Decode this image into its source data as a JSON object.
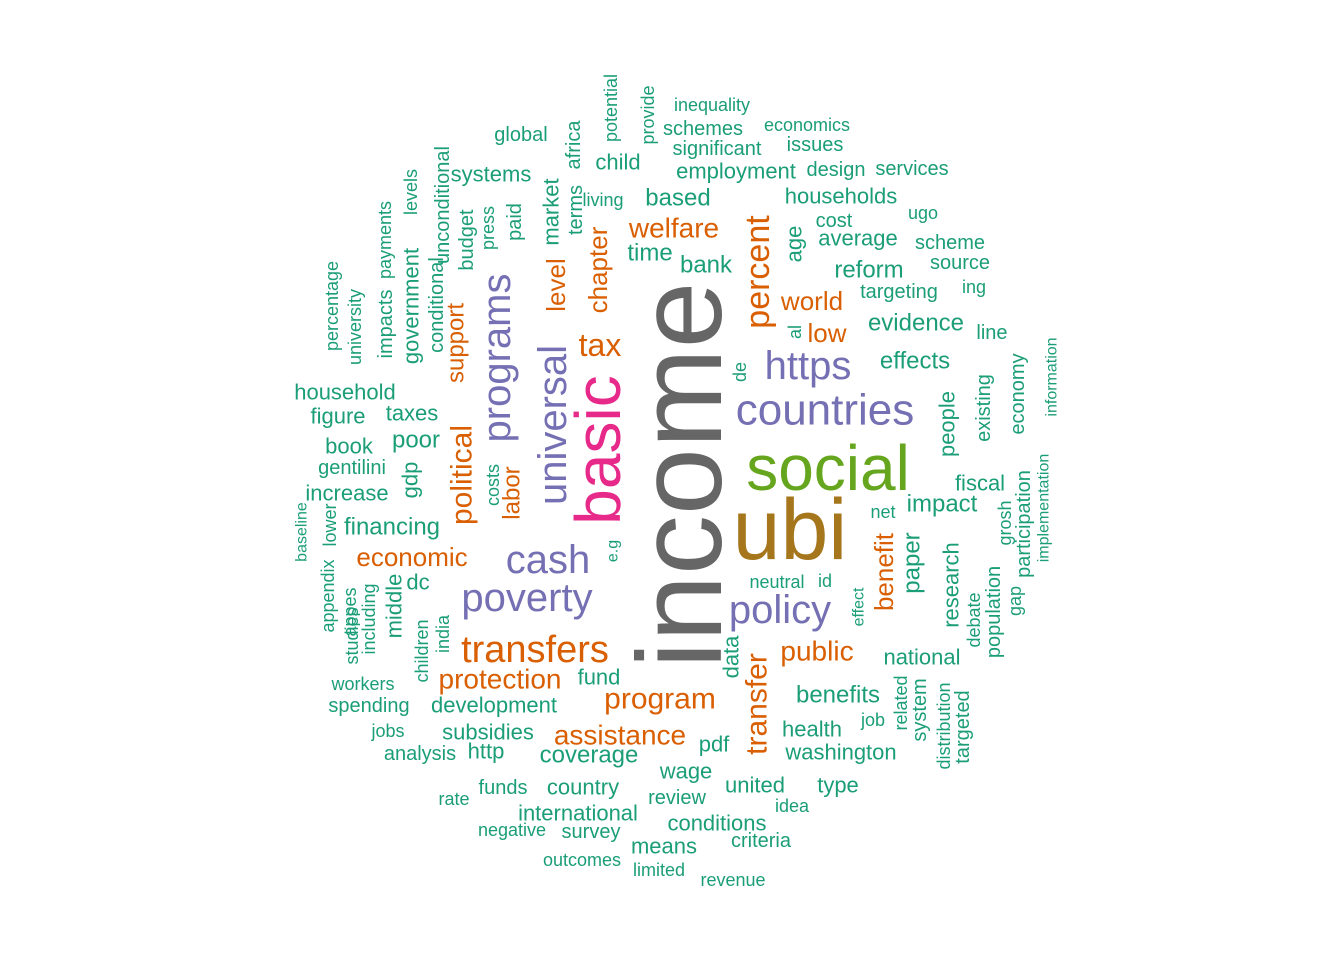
{
  "colors": {
    "gray": "#666666",
    "gold": "#a6761d",
    "green": "#66a61e",
    "pink": "#e7298a",
    "purple": "#7570b3",
    "orange": "#d95f02",
    "teal": "#1b9e77"
  },
  "words": [
    {
      "text": "income",
      "color": "gray"
    },
    {
      "text": "ubi",
      "color": "gold"
    },
    {
      "text": "social",
      "color": "green"
    },
    {
      "text": "basic",
      "color": "pink"
    },
    {
      "text": "universal",
      "color": "purple"
    },
    {
      "text": "programs",
      "color": "purple"
    },
    {
      "text": "countries",
      "color": "purple"
    },
    {
      "text": "cash",
      "color": "purple"
    },
    {
      "text": "poverty",
      "color": "purple"
    },
    {
      "text": "policy",
      "color": "purple"
    },
    {
      "text": "https",
      "color": "purple"
    },
    {
      "text": "transfers",
      "color": "orange"
    },
    {
      "text": "percent",
      "color": "orange"
    },
    {
      "text": "transfer",
      "color": "orange"
    },
    {
      "text": "program",
      "color": "orange"
    },
    {
      "text": "protection",
      "color": "orange"
    },
    {
      "text": "assistance",
      "color": "orange"
    },
    {
      "text": "tax",
      "color": "orange"
    },
    {
      "text": "political",
      "color": "orange"
    },
    {
      "text": "welfare",
      "color": "orange"
    },
    {
      "text": "economic",
      "color": "orange"
    },
    {
      "text": "public",
      "color": "orange"
    },
    {
      "text": "benefit",
      "color": "orange"
    },
    {
      "text": "chapter",
      "color": "orange"
    },
    {
      "text": "level",
      "color": "orange"
    },
    {
      "text": "labor",
      "color": "orange"
    },
    {
      "text": "support",
      "color": "orange"
    },
    {
      "text": "world",
      "color": "orange"
    },
    {
      "text": "low",
      "color": "orange"
    },
    {
      "text": "coverage",
      "color": "teal"
    },
    {
      "text": "impact",
      "color": "teal"
    },
    {
      "text": "evidence",
      "color": "teal"
    },
    {
      "text": "reform",
      "color": "teal"
    },
    {
      "text": "effects",
      "color": "teal"
    },
    {
      "text": "benefits",
      "color": "teal"
    },
    {
      "text": "paper",
      "color": "teal"
    },
    {
      "text": "development",
      "color": "teal"
    },
    {
      "text": "financing",
      "color": "teal"
    },
    {
      "text": "based",
      "color": "teal"
    },
    {
      "text": "bank",
      "color": "teal"
    },
    {
      "text": "time",
      "color": "teal"
    },
    {
      "text": "market",
      "color": "teal"
    },
    {
      "text": "households",
      "color": "teal"
    },
    {
      "text": "employment",
      "color": "teal"
    },
    {
      "text": "age",
      "color": "teal"
    },
    {
      "text": "average",
      "color": "teal"
    },
    {
      "text": "cost",
      "color": "teal"
    },
    {
      "text": "targeting",
      "color": "teal"
    },
    {
      "text": "scheme",
      "color": "teal"
    },
    {
      "text": "source",
      "color": "teal"
    },
    {
      "text": "ing",
      "color": "teal"
    },
    {
      "text": "ugo",
      "color": "teal"
    },
    {
      "text": "design",
      "color": "teal"
    },
    {
      "text": "services",
      "color": "teal"
    },
    {
      "text": "issues",
      "color": "teal"
    },
    {
      "text": "significant",
      "color": "teal"
    },
    {
      "text": "schemes",
      "color": "teal"
    },
    {
      "text": "economics",
      "color": "teal"
    },
    {
      "text": "inequality",
      "color": "teal"
    },
    {
      "text": "provide",
      "color": "teal"
    },
    {
      "text": "potential",
      "color": "teal"
    },
    {
      "text": "africa",
      "color": "teal"
    },
    {
      "text": "child",
      "color": "teal"
    },
    {
      "text": "living",
      "color": "teal"
    },
    {
      "text": "terms",
      "color": "teal"
    },
    {
      "text": "global",
      "color": "teal"
    },
    {
      "text": "systems",
      "color": "teal"
    },
    {
      "text": "unconditional",
      "color": "teal"
    },
    {
      "text": "levels",
      "color": "teal"
    },
    {
      "text": "payments",
      "color": "teal"
    },
    {
      "text": "budget",
      "color": "teal"
    },
    {
      "text": "press",
      "color": "teal"
    },
    {
      "text": "paid",
      "color": "teal"
    },
    {
      "text": "conditional",
      "color": "teal"
    },
    {
      "text": "government",
      "color": "teal"
    },
    {
      "text": "impacts",
      "color": "teal"
    },
    {
      "text": "university",
      "color": "teal"
    },
    {
      "text": "percentage",
      "color": "teal"
    },
    {
      "text": "household",
      "color": "teal"
    },
    {
      "text": "figure",
      "color": "teal"
    },
    {
      "text": "taxes",
      "color": "teal"
    },
    {
      "text": "poor",
      "color": "teal"
    },
    {
      "text": "book",
      "color": "teal"
    },
    {
      "text": "gentilini",
      "color": "teal"
    },
    {
      "text": "gdp",
      "color": "teal"
    },
    {
      "text": "increase",
      "color": "teal"
    },
    {
      "text": "costs",
      "color": "teal"
    },
    {
      "text": "baseline",
      "color": "teal"
    },
    {
      "text": "lower",
      "color": "teal"
    },
    {
      "text": "appendix",
      "color": "teal"
    },
    {
      "text": "dc",
      "color": "teal"
    },
    {
      "text": "middle",
      "color": "teal"
    },
    {
      "text": "appes",
      "color": "teal"
    },
    {
      "text": "studies",
      "color": "teal"
    },
    {
      "text": "including",
      "color": "teal"
    },
    {
      "text": "children",
      "color": "teal"
    },
    {
      "text": "india",
      "color": "teal"
    },
    {
      "text": "e.g",
      "color": "teal"
    },
    {
      "text": "workers",
      "color": "teal"
    },
    {
      "text": "spending",
      "color": "teal"
    },
    {
      "text": "jobs",
      "color": "teal"
    },
    {
      "text": "analysis",
      "color": "teal"
    },
    {
      "text": "http",
      "color": "teal"
    },
    {
      "text": "subsidies",
      "color": "teal"
    },
    {
      "text": "fund",
      "color": "teal"
    },
    {
      "text": "data",
      "color": "teal"
    },
    {
      "text": "pdf",
      "color": "teal"
    },
    {
      "text": "wage",
      "color": "teal"
    },
    {
      "text": "health",
      "color": "teal"
    },
    {
      "text": "washington",
      "color": "teal"
    },
    {
      "text": "national",
      "color": "teal"
    },
    {
      "text": "job",
      "color": "teal"
    },
    {
      "text": "related",
      "color": "teal"
    },
    {
      "text": "system",
      "color": "teal"
    },
    {
      "text": "distribution",
      "color": "teal"
    },
    {
      "text": "targeted",
      "color": "teal"
    },
    {
      "text": "research",
      "color": "teal"
    },
    {
      "text": "debate",
      "color": "teal"
    },
    {
      "text": "population",
      "color": "teal"
    },
    {
      "text": "gap",
      "color": "teal"
    },
    {
      "text": "participation",
      "color": "teal"
    },
    {
      "text": "grosh",
      "color": "teal"
    },
    {
      "text": "implementation",
      "color": "teal"
    },
    {
      "text": "economy",
      "color": "teal"
    },
    {
      "text": "information",
      "color": "teal"
    },
    {
      "text": "existing",
      "color": "teal"
    },
    {
      "text": "fiscal",
      "color": "teal"
    },
    {
      "text": "people",
      "color": "teal"
    },
    {
      "text": "line",
      "color": "teal"
    },
    {
      "text": "net",
      "color": "teal"
    },
    {
      "text": "neutral",
      "color": "teal"
    },
    {
      "text": "id",
      "color": "teal"
    },
    {
      "text": "effect",
      "color": "teal"
    },
    {
      "text": "de",
      "color": "teal"
    },
    {
      "text": "al",
      "color": "teal"
    },
    {
      "text": "united",
      "color": "teal"
    },
    {
      "text": "type",
      "color": "teal"
    },
    {
      "text": "idea",
      "color": "teal"
    },
    {
      "text": "country",
      "color": "teal"
    },
    {
      "text": "funds",
      "color": "teal"
    },
    {
      "text": "rate",
      "color": "teal"
    },
    {
      "text": "international",
      "color": "teal"
    },
    {
      "text": "review",
      "color": "teal"
    },
    {
      "text": "conditions",
      "color": "teal"
    },
    {
      "text": "criteria",
      "color": "teal"
    },
    {
      "text": "negative",
      "color": "teal"
    },
    {
      "text": "survey",
      "color": "teal"
    },
    {
      "text": "means",
      "color": "teal"
    },
    {
      "text": "outcomes",
      "color": "teal"
    },
    {
      "text": "limited",
      "color": "teal"
    },
    {
      "text": "revenue",
      "color": "teal"
    }
  ]
}
